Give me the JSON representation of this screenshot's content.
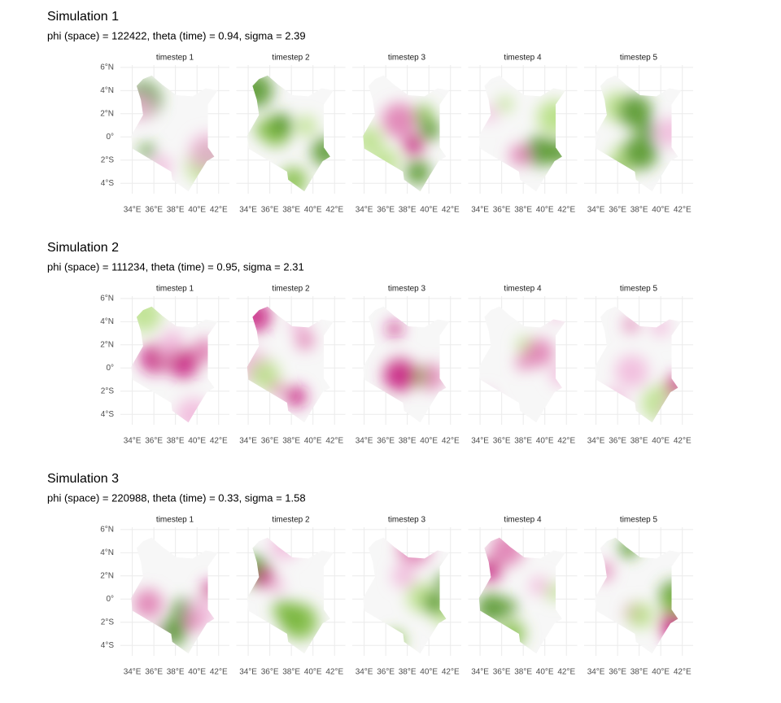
{
  "chart_data": [
    {
      "type": "map",
      "title": "Simulation 1",
      "subtitle": "phi (space) = 122422, theta (time) = 0.94, sigma = 2.39",
      "facets": [
        "timestep 1",
        "timestep 2",
        "timestep 3",
        "timestep 4",
        "timestep 5"
      ],
      "xlim": [
        32.9,
        43.0
      ],
      "ylim": [
        -4.9,
        6.2
      ],
      "xticks": [
        {
          "value": 34,
          "label": "34°E"
        },
        {
          "value": 36,
          "label": "36°E"
        },
        {
          "value": 38,
          "label": "38°E"
        },
        {
          "value": 40,
          "label": "40°E"
        },
        {
          "value": 42,
          "label": "42°E"
        }
      ],
      "yticks": [
        {
          "value": 6,
          "label": "6°N"
        },
        {
          "value": 4,
          "label": "4°N"
        },
        {
          "value": 2,
          "label": "2°N"
        },
        {
          "value": 0,
          "label": "0°"
        },
        {
          "value": -2,
          "label": "2°S"
        },
        {
          "value": -4,
          "label": "4°S"
        }
      ],
      "grid": true
    },
    {
      "type": "map",
      "title": "Simulation 2",
      "subtitle": "phi (space) = 111234, theta (time) = 0.95, sigma = 2.31",
      "facets": [
        "timestep 1",
        "timestep 2",
        "timestep 3",
        "timestep 4",
        "timestep 5"
      ],
      "xlim": [
        32.9,
        43.0
      ],
      "ylim": [
        -4.9,
        6.2
      ],
      "xticks": [
        {
          "value": 34,
          "label": "34°E"
        },
        {
          "value": 36,
          "label": "36°E"
        },
        {
          "value": 38,
          "label": "38°E"
        },
        {
          "value": 40,
          "label": "40°E"
        },
        {
          "value": 42,
          "label": "42°E"
        }
      ],
      "yticks": [
        {
          "value": 6,
          "label": "6°N"
        },
        {
          "value": 4,
          "label": "4°N"
        },
        {
          "value": 2,
          "label": "2°N"
        },
        {
          "value": 0,
          "label": "0°"
        },
        {
          "value": -2,
          "label": "2°S"
        },
        {
          "value": -4,
          "label": "4°S"
        }
      ],
      "grid": true
    },
    {
      "type": "map",
      "title": "Simulation 3",
      "subtitle": "phi (space) = 220988, theta (time) = 0.33, sigma = 1.58",
      "facets": [
        "timestep 1",
        "timestep 2",
        "timestep 3",
        "timestep 4",
        "timestep 5"
      ],
      "xlim": [
        32.9,
        43.0
      ],
      "ylim": [
        -4.9,
        6.2
      ],
      "xticks": [
        {
          "value": 34,
          "label": "34°E"
        },
        {
          "value": 36,
          "label": "36°E"
        },
        {
          "value": 38,
          "label": "38°E"
        },
        {
          "value": 40,
          "label": "40°E"
        },
        {
          "value": 42,
          "label": "42°E"
        }
      ],
      "yticks": [
        {
          "value": 6,
          "label": "6°N"
        },
        {
          "value": 4,
          "label": "4°N"
        },
        {
          "value": 2,
          "label": "2°N"
        },
        {
          "value": 0,
          "label": "0°"
        },
        {
          "value": -2,
          "label": "2°S"
        },
        {
          "value": -4,
          "label": "4°S"
        }
      ],
      "grid": true
    }
  ]
}
